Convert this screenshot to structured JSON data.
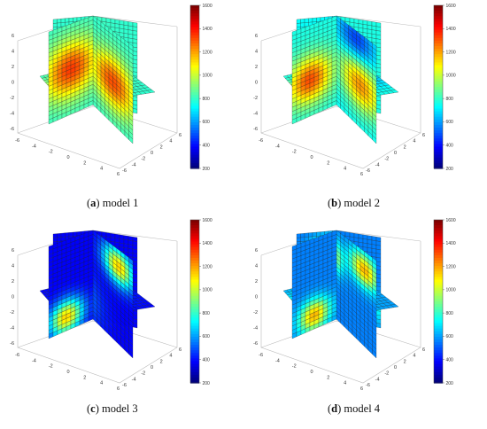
{
  "colormap": "jet",
  "panels": [
    {
      "id": "a",
      "letter": "a",
      "caption": " model 1",
      "pattern": "center_hot"
    },
    {
      "id": "b",
      "letter": "b",
      "caption": " model 2",
      "pattern": "center_left_hot"
    },
    {
      "id": "c",
      "letter": "c",
      "caption": " model 3",
      "pattern": "corner_hot"
    },
    {
      "id": "d",
      "letter": "d",
      "caption": " model 4",
      "pattern": "mixed"
    }
  ],
  "axes": {
    "z_ticks": [
      "6",
      "4",
      "2",
      "0",
      "-2",
      "-4",
      "-6"
    ],
    "x_ticks": [
      "-6",
      "-4",
      "-2",
      "0",
      "2",
      "4",
      "6"
    ],
    "y_ticks": [
      "-6",
      "-4",
      "-2",
      "0",
      "2",
      "4",
      "6"
    ]
  },
  "colorbar": {
    "ticks": [
      "1600",
      "1400",
      "1200",
      "1000",
      "800",
      "600",
      "400",
      "200"
    ],
    "min": 200,
    "max": 1600
  }
}
